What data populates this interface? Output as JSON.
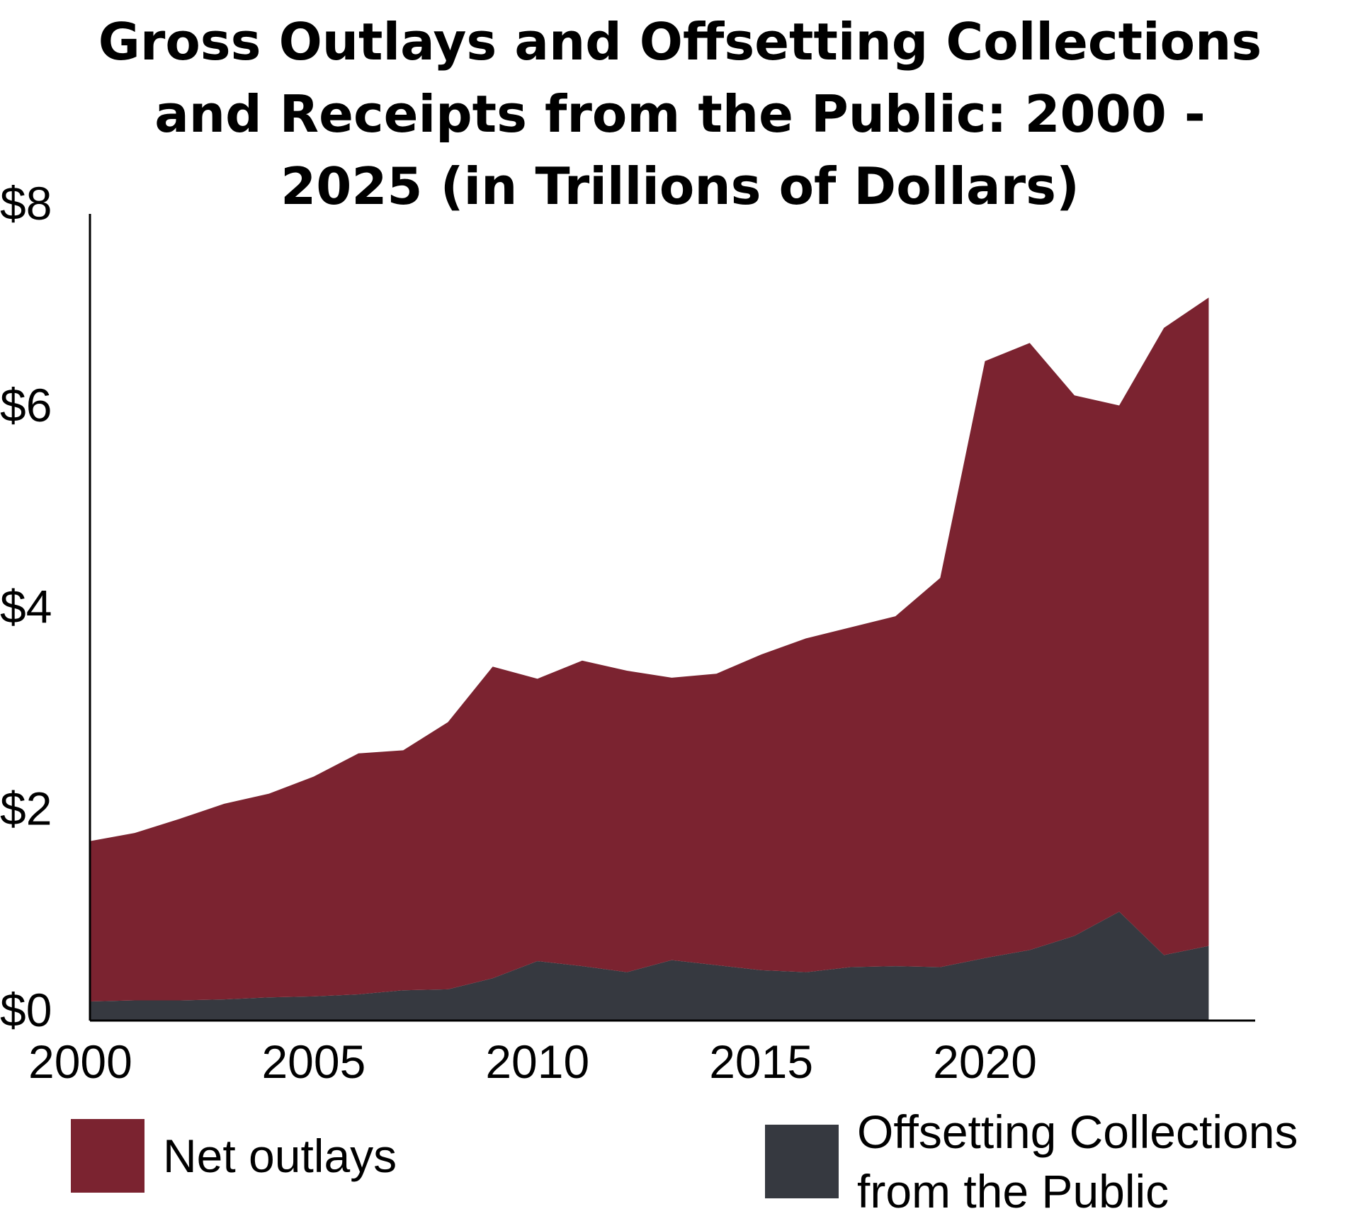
{
  "chart_data": {
    "type": "area",
    "title_lines": [
      "Gross Outlays and Offsetting Collections",
      "and Receipts from the Public: 2000 -",
      "2025 (in Trillions of Dollars)"
    ],
    "x": [
      2000,
      2001,
      2002,
      2003,
      2004,
      2005,
      2006,
      2007,
      2008,
      2009,
      2010,
      2011,
      2012,
      2013,
      2014,
      2015,
      2016,
      2017,
      2018,
      2019,
      2020,
      2021,
      2022,
      2023,
      2024,
      2025
    ],
    "series": [
      {
        "name": "Offsetting Collections from the Public",
        "color": "#363940",
        "values": [
          0.19,
          0.2,
          0.2,
          0.21,
          0.23,
          0.24,
          0.26,
          0.3,
          0.31,
          0.42,
          0.59,
          0.54,
          0.48,
          0.6,
          0.55,
          0.5,
          0.48,
          0.53,
          0.54,
          0.53,
          0.62,
          0.7,
          0.84,
          1.08,
          0.65,
          0.74
        ]
      },
      {
        "name": "Net outlays",
        "color": "#7b2330",
        "values": [
          1.59,
          1.66,
          1.8,
          1.94,
          2.02,
          2.18,
          2.39,
          2.38,
          2.65,
          3.09,
          2.8,
          3.03,
          2.99,
          2.8,
          2.89,
          3.13,
          3.31,
          3.37,
          3.47,
          3.86,
          5.92,
          6.02,
          5.36,
          5.02,
          6.22,
          6.43
        ]
      }
    ],
    "stacked": true,
    "x_ticks": [
      "2000",
      "2005",
      "2010",
      "2015",
      "2020"
    ],
    "x_tick_values": [
      2000,
      2005,
      2010,
      2015,
      2020
    ],
    "y_ticks": [
      "$0",
      "$2",
      "$4",
      "$6",
      "$8"
    ],
    "y_tick_values": [
      0,
      2,
      4,
      6,
      8
    ],
    "xlim": [
      2000,
      2025.5
    ],
    "ylim": [
      0,
      8
    ],
    "grid": false,
    "legend_position": "bottom",
    "legend": {
      "net": "Net outlays",
      "offset_line1": "Offsetting Collections",
      "offset_line2": "from the Public"
    }
  }
}
